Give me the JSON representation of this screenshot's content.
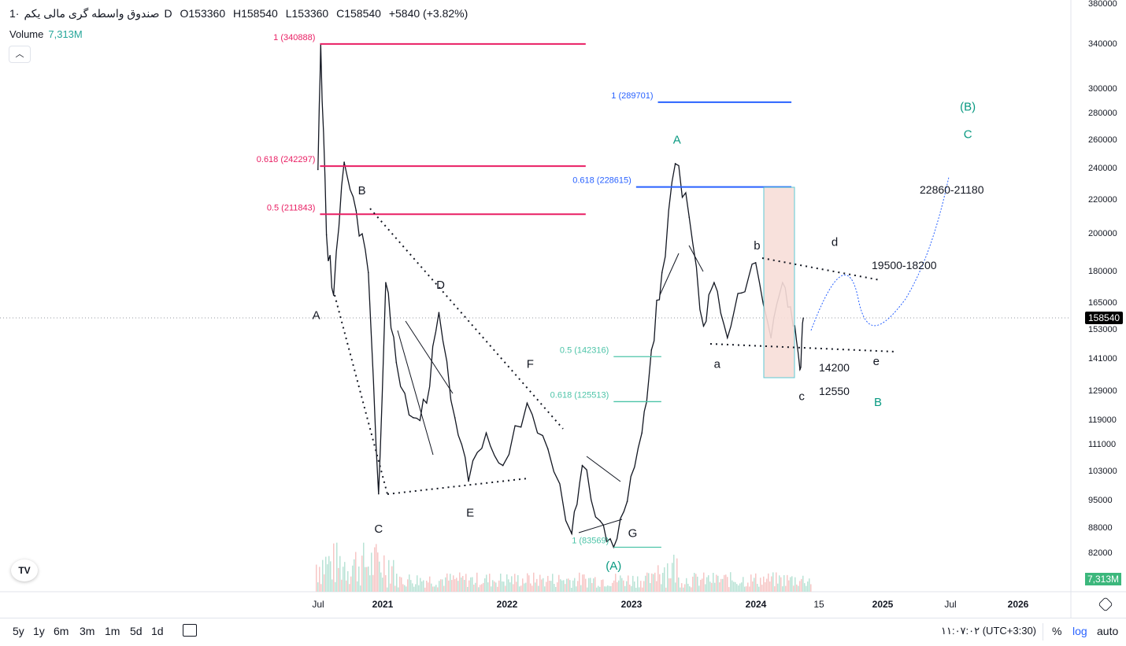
{
  "header": {
    "symbol": "صندوق واسطه گری مالی یکم",
    "interval": "1D",
    "open": "O153360",
    "high": "H158540",
    "low": "L153360",
    "close": "C158540",
    "change": "+5840 (+3.82%)",
    "volume_label": "Volume",
    "volume_value": "7,313M"
  },
  "collapse_icon": "chevron-up-icon",
  "price_axis": {
    "ticks": [
      "380000",
      "340000",
      "300000",
      "280000",
      "260000",
      "240000",
      "220000",
      "200000",
      "180000",
      "165000",
      "153000",
      "141000",
      "129000",
      "119000",
      "111000",
      "103000",
      "95000",
      "88000",
      "82000"
    ],
    "last_price": "158540",
    "volume_tag": "7,313M"
  },
  "time_axis": {
    "labels": [
      {
        "t": "Jul",
        "bold": false
      },
      {
        "t": "2021",
        "bold": true
      },
      {
        "t": "2022",
        "bold": true
      },
      {
        "t": "2023",
        "bold": true
      },
      {
        "t": "2024",
        "bold": true
      },
      {
        "t": "15",
        "bold": false
      },
      {
        "t": "2025",
        "bold": true
      },
      {
        "t": "Jul",
        "bold": false
      },
      {
        "t": "2026",
        "bold": true
      }
    ]
  },
  "toolbar": {
    "ranges": [
      "5y",
      "1y",
      "6m",
      "3m",
      "1m",
      "5d",
      "1d"
    ],
    "time": "۱۱:۰۷:۰۲ (UTC+3:30)",
    "percent": "%",
    "log": "log",
    "auto": "auto"
  },
  "colors": {
    "fib_red": "#e91e63",
    "fib_blue": "#2962ff",
    "fib_teal": "#4dc4a8",
    "wave_teal": "#089981",
    "up": "#26a69a",
    "down": "#ef5350"
  },
  "chart_data": {
    "type": "line",
    "scale": "log",
    "ylim": [
      78000,
      380000
    ],
    "x": [
      "2020-06-25",
      "2020-07-03",
      "2020-07-20",
      "2020-08-10",
      "2020-09-10",
      "2020-10-15",
      "2020-11-20",
      "2020-12-20",
      "2021-01-10",
      "2021-02-10",
      "2021-04-01",
      "2021-05-10",
      "2021-06-15",
      "2021-08-01",
      "2021-09-10",
      "2021-11-01",
      "2021-12-20",
      "2022-03-01",
      "2022-05-01",
      "2022-07-10",
      "2022-08-10",
      "2022-10-01",
      "2022-11-10",
      "2022-12-20",
      "2023-02-01",
      "2023-03-01",
      "2023-04-01",
      "2023-05-10",
      "2023-06-20",
      "2023-08-01",
      "2023-09-01",
      "2023-10-10",
      "2023-11-20",
      "2024-01-01",
      "2024-02-15",
      "2024-03-20",
      "2024-04-20",
      "2024-05-10",
      "2024-05-20"
    ],
    "values": [
      240000,
      340888,
      200000,
      169000,
      245000,
      214000,
      180000,
      97000,
      175000,
      140000,
      120000,
      125000,
      161000,
      120000,
      100500,
      115000,
      105000,
      125000,
      110000,
      86800,
      105000,
      90000,
      83569,
      95000,
      115000,
      145000,
      180000,
      244000,
      210000,
      155000,
      175000,
      150000,
      170000,
      185000,
      150000,
      175000,
      155000,
      137300,
      158540
    ],
    "fib_levels": [
      {
        "group": "red",
        "label": "1 (340888)",
        "value": 340888,
        "from": "2020-07-01",
        "to": "2022-08-20"
      },
      {
        "group": "red",
        "label": "0.618 (242297)",
        "value": 242297,
        "from": "2020-07-01",
        "to": "2022-08-20"
      },
      {
        "group": "red",
        "label": "0.5 (211843)",
        "value": 211843,
        "from": "2020-07-01",
        "to": "2022-08-20"
      },
      {
        "group": "blue",
        "label": "1 (289701)",
        "value": 289701,
        "from": "2023-03-20",
        "to": "2024-04-15"
      },
      {
        "group": "blue",
        "label": "0.618 (228615)",
        "value": 228615,
        "from": "2023-01-15",
        "to": "2024-04-15"
      },
      {
        "group": "teal",
        "label": "0.5 (142316)",
        "value": 142316,
        "from": "2022-11-10",
        "to": "2023-03-30"
      },
      {
        "group": "teal",
        "label": "0.618 (125513)",
        "value": 125513,
        "from": "2022-11-10",
        "to": "2023-03-30"
      },
      {
        "group": "teal",
        "label": "1 (83569)",
        "value": 83569,
        "from": "2022-11-10",
        "to": "2023-03-30"
      }
    ],
    "wave_labels": [
      {
        "t": "A",
        "d": "2020-06-20",
        "p": 158000,
        "c": "black"
      },
      {
        "t": "B",
        "d": "2020-11-01",
        "p": 224000,
        "c": "black"
      },
      {
        "t": "C",
        "d": "2020-12-20",
        "p": 87000,
        "c": "black"
      },
      {
        "t": "D",
        "d": "2021-06-20",
        "p": 172000,
        "c": "black"
      },
      {
        "t": "E",
        "d": "2021-09-15",
        "p": 91000,
        "c": "black"
      },
      {
        "t": "F",
        "d": "2022-03-10",
        "p": 138000,
        "c": "black"
      },
      {
        "t": "G",
        "d": "2023-01-05",
        "p": 86000,
        "c": "black"
      },
      {
        "t": "(A)",
        "d": "2022-11-10",
        "p": 78500,
        "c": "teal"
      },
      {
        "t": "A",
        "d": "2023-05-15",
        "p": 258000,
        "c": "teal"
      },
      {
        "t": "a",
        "d": "2023-09-10",
        "p": 138000,
        "c": "black"
      },
      {
        "t": "b",
        "d": "2024-01-05",
        "p": 192000,
        "c": "black"
      },
      {
        "t": "c",
        "d": "2024-05-15",
        "p": 126000,
        "c": "black"
      },
      {
        "t": "d",
        "d": "2024-08-20",
        "p": 194000,
        "c": "black"
      },
      {
        "t": "e",
        "d": "2024-12-20",
        "p": 139000,
        "c": "black"
      },
      {
        "t": "B",
        "d": "2024-12-25",
        "p": 124000,
        "c": "teal"
      },
      {
        "t": "C",
        "d": "2025-09-15",
        "p": 262000,
        "c": "teal"
      },
      {
        "t": "(B)",
        "d": "2025-09-15",
        "p": 283000,
        "c": "teal"
      }
    ],
    "annotations": [
      "22860-21180",
      "19500-18200",
      "14200",
      "12550"
    ]
  }
}
